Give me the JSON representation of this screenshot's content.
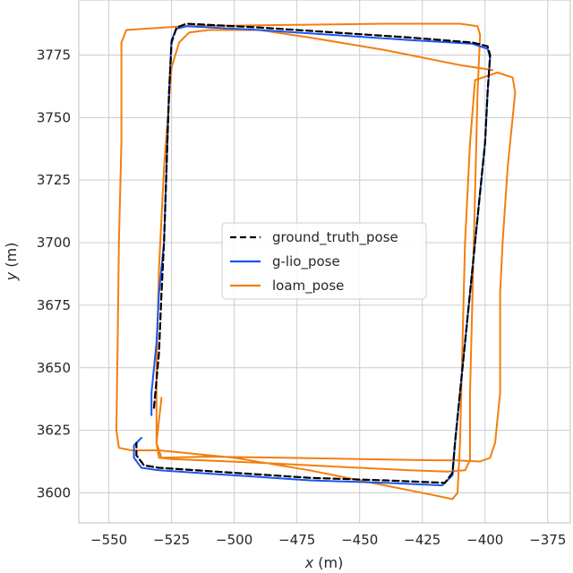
{
  "chart_data": {
    "type": "line",
    "xlabel_italic": "x",
    "xlabel_unit": " (m)",
    "ylabel_italic": "y",
    "ylabel_unit": " (m)",
    "xlim": [
      -562,
      -366
    ],
    "ylim": [
      3588,
      3797
    ],
    "xticks": [
      -550,
      -525,
      -500,
      -475,
      -450,
      -425,
      -400,
      -375
    ],
    "xtick_labels": [
      "−550",
      "−525",
      "−500",
      "−475",
      "−450",
      "−425",
      "−400",
      "−375"
    ],
    "yticks": [
      3600,
      3625,
      3650,
      3675,
      3700,
      3725,
      3750,
      3775
    ],
    "ytick_labels": [
      "3600",
      "3625",
      "3650",
      "3675",
      "3700",
      "3725",
      "3750",
      "3775"
    ],
    "grid": true,
    "legend_position": "center",
    "series": [
      {
        "name": "ground_truth_pose",
        "color": "#000000",
        "dash": "dashed",
        "points": [
          [
            -532,
            3634
          ],
          [
            -530,
            3656
          ],
          [
            -529,
            3680
          ],
          [
            -528,
            3700
          ],
          [
            -527,
            3730
          ],
          [
            -526,
            3760
          ],
          [
            -525,
            3780
          ],
          [
            -523,
            3786
          ],
          [
            -519,
            3787.5
          ],
          [
            -490,
            3786
          ],
          [
            -460,
            3784
          ],
          [
            -430,
            3782
          ],
          [
            -405,
            3780
          ],
          [
            -399,
            3778.5
          ],
          [
            -398,
            3775
          ],
          [
            -399,
            3760
          ],
          [
            -400,
            3740
          ],
          [
            -402,
            3720
          ],
          [
            -404,
            3700
          ],
          [
            -406,
            3680
          ],
          [
            -408,
            3660
          ],
          [
            -410,
            3640
          ],
          [
            -412,
            3620
          ],
          [
            -413,
            3608
          ],
          [
            -416,
            3604
          ],
          [
            -440,
            3605
          ],
          [
            -470,
            3606
          ],
          [
            -500,
            3608
          ],
          [
            -530,
            3610
          ],
          [
            -536,
            3611
          ],
          [
            -539,
            3615
          ],
          [
            -539,
            3620
          ]
        ]
      },
      {
        "name": "g-lio_pose",
        "color": "#1a55f0",
        "dash": "solid",
        "points": [
          [
            -533,
            3631
          ],
          [
            -533,
            3640
          ],
          [
            -531,
            3660
          ],
          [
            -530,
            3680
          ],
          [
            -528,
            3700
          ],
          [
            -527,
            3730
          ],
          [
            -526,
            3760
          ],
          [
            -525,
            3781
          ],
          [
            -523,
            3785.5
          ],
          [
            -519,
            3786.5
          ],
          [
            -490,
            3785
          ],
          [
            -460,
            3783
          ],
          [
            -430,
            3781
          ],
          [
            -405,
            3779.5
          ],
          [
            -399,
            3777.5
          ],
          [
            -398,
            3774
          ],
          [
            -399,
            3760
          ],
          [
            -400,
            3740
          ],
          [
            -402,
            3720
          ],
          [
            -404,
            3700
          ],
          [
            -406,
            3680
          ],
          [
            -408,
            3660
          ],
          [
            -410,
            3640
          ],
          [
            -412,
            3620
          ],
          [
            -413,
            3607
          ],
          [
            -417,
            3603
          ],
          [
            -440,
            3604
          ],
          [
            -470,
            3605
          ],
          [
            -500,
            3607
          ],
          [
            -530,
            3609
          ],
          [
            -537,
            3610
          ],
          [
            -540,
            3614
          ],
          [
            -540,
            3619
          ],
          [
            -537,
            3622
          ]
        ]
      },
      {
        "name": "loam_pose",
        "color": "#f27f0c",
        "dash": "solid",
        "points": [
          [
            -529,
            3638
          ],
          [
            -530,
            3629
          ],
          [
            -531,
            3620
          ],
          [
            -530,
            3614
          ],
          [
            -525,
            3613.5
          ],
          [
            -490,
            3612
          ],
          [
            -460,
            3610.5
          ],
          [
            -430,
            3609
          ],
          [
            -415,
            3608.5
          ],
          [
            -408,
            3609
          ],
          [
            -406,
            3613
          ],
          [
            -406,
            3640
          ],
          [
            -405,
            3680
          ],
          [
            -404,
            3720
          ],
          [
            -403,
            3760
          ],
          [
            -402,
            3783
          ],
          [
            -403,
            3786.5
          ],
          [
            -410,
            3787.5
          ],
          [
            -440,
            3787.5
          ],
          [
            -480,
            3787
          ],
          [
            -520,
            3786.5
          ],
          [
            -543,
            3785
          ],
          [
            -545,
            3780
          ],
          [
            -545,
            3740
          ],
          [
            -546,
            3700
          ],
          [
            -546.5,
            3660
          ],
          [
            -547,
            3625
          ],
          [
            -546,
            3618
          ],
          [
            -541,
            3617
          ],
          [
            -530,
            3617
          ],
          [
            -500,
            3614
          ],
          [
            -470,
            3609
          ],
          [
            -440,
            3603
          ],
          [
            -420,
            3599
          ],
          [
            -413,
            3597.5
          ],
          [
            -411,
            3600
          ],
          [
            -410,
            3620
          ],
          [
            -409,
            3660
          ],
          [
            -408,
            3700
          ],
          [
            -406,
            3740
          ],
          [
            -404,
            3765
          ],
          [
            -395,
            3768
          ],
          [
            -389,
            3766
          ],
          [
            -388,
            3760
          ],
          [
            -391,
            3730
          ],
          [
            -393,
            3700
          ],
          [
            -394,
            3680
          ],
          [
            -394,
            3660
          ],
          [
            -394,
            3640
          ],
          [
            -396,
            3620
          ],
          [
            -398,
            3614
          ],
          [
            -402,
            3612.5
          ],
          [
            -412,
            3613
          ],
          [
            -420,
            3613
          ],
          [
            -450,
            3613.5
          ],
          [
            -480,
            3614
          ],
          [
            -510,
            3614.5
          ],
          [
            -529,
            3614
          ],
          [
            -531,
            3620
          ],
          [
            -531,
            3650
          ],
          [
            -530,
            3690
          ],
          [
            -528,
            3730
          ],
          [
            -525,
            3770
          ],
          [
            -522,
            3780
          ],
          [
            -518,
            3784
          ],
          [
            -510,
            3785
          ],
          [
            -490,
            3785
          ],
          [
            -470,
            3782
          ],
          [
            -440,
            3777
          ],
          [
            -410,
            3771
          ],
          [
            -397,
            3769
          ]
        ]
      }
    ]
  }
}
